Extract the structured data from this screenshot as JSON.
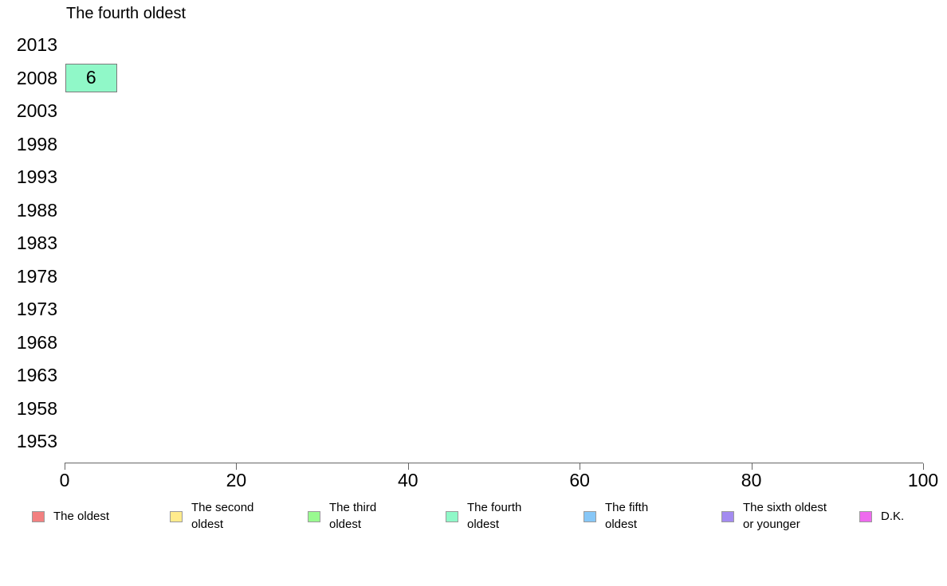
{
  "chart_data": {
    "type": "bar",
    "orientation": "horizontal",
    "title": "The fourth oldest",
    "categories": [
      "2013",
      "2008",
      "2003",
      "1998",
      "1993",
      "1988",
      "1983",
      "1978",
      "1973",
      "1968",
      "1963",
      "1958",
      "1953"
    ],
    "series": [
      {
        "name": "The fourth oldest",
        "color": "#90F8C8",
        "values": [
          null,
          6,
          null,
          null,
          null,
          null,
          null,
          null,
          null,
          null,
          null,
          null,
          null
        ]
      }
    ],
    "xlabel": "",
    "ylabel": "",
    "xlim": [
      0,
      100
    ],
    "x_ticks": [
      0,
      20,
      40,
      60,
      80,
      100
    ],
    "grid": false,
    "legend_position": "bottom",
    "legend": [
      {
        "label": "The oldest",
        "color": "#F28080"
      },
      {
        "label": "The second\noldest",
        "color": "#FFEB8C"
      },
      {
        "label": "The third\noldest",
        "color": "#99FA90"
      },
      {
        "label": "The fourth\noldest",
        "color": "#90F8C8"
      },
      {
        "label": "The fifth\noldest",
        "color": "#87C7F7"
      },
      {
        "label": "The sixth oldest\nor younger",
        "color": "#A38BF0"
      },
      {
        "label": "D.K.",
        "color": "#EE6AEE"
      }
    ]
  }
}
